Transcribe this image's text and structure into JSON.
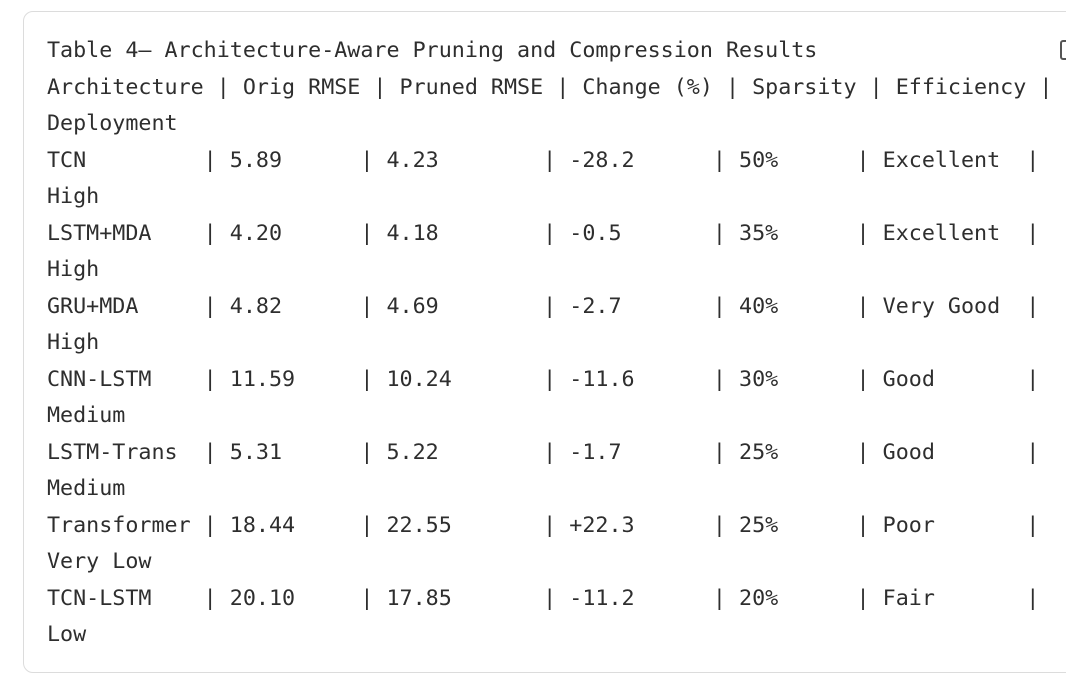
{
  "title": "Table 4— Architecture-Aware Pruning and Compression Results",
  "header": {
    "line": "Architecture | Orig RMSE | Pruned RMSE | Change (%) | Sparsity | Efficiency |",
    "continuation": "Deployment"
  },
  "rows": [
    {
      "line": "TCN         | 5.89      | 4.23        | -28.2      | 50%      | Excellent  |",
      "continuation": "High"
    },
    {
      "line": "LSTM+MDA    | 4.20      | 4.18        | -0.5       | 35%      | Excellent  |",
      "continuation": "High"
    },
    {
      "line": "GRU+MDA     | 4.82      | 4.69        | -2.7       | 40%      | Very Good  |",
      "continuation": "High"
    },
    {
      "line": "CNN-LSTM    | 11.59     | 10.24       | -11.6      | 30%      | Good       |",
      "continuation": "Medium"
    },
    {
      "line": "LSTM-Trans  | 5.31      | 5.22        | -1.7       | 25%      | Good       |",
      "continuation": "Medium"
    },
    {
      "line": "Transformer | 18.44     | 22.55       | +22.3      | 25%      | Poor       |",
      "continuation": "Very Low"
    },
    {
      "line": "TCN-LSTM    | 20.10     | 17.85       | -11.2      | 20%      | Fair       |",
      "continuation": "Low"
    }
  ]
}
